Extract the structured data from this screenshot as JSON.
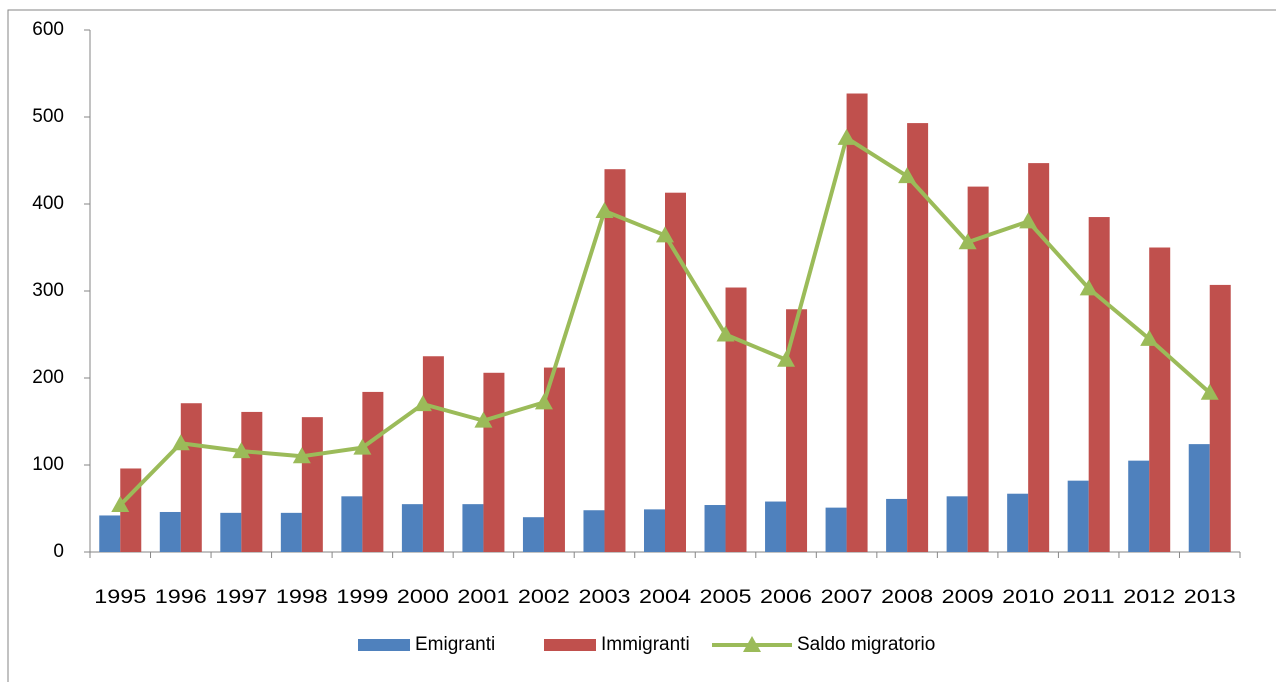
{
  "chart_data": {
    "type": "bar",
    "categories": [
      "1995",
      "1996",
      "1997",
      "1998",
      "1999",
      "2000",
      "2001",
      "2002",
      "2003",
      "2004",
      "2005",
      "2006",
      "2007",
      "2008",
      "2009",
      "2010",
      "2011",
      "2012",
      "2013"
    ],
    "series": [
      {
        "name": "Emigranti",
        "color": "#4f81bd",
        "type": "bar",
        "values": [
          42,
          46,
          45,
          45,
          64,
          55,
          55,
          40,
          48,
          49,
          54,
          58,
          51,
          61,
          64,
          67,
          82,
          105,
          124
        ]
      },
      {
        "name": "Immigranti",
        "color": "#c0504d",
        "type": "bar",
        "values": [
          96,
          171,
          161,
          155,
          184,
          225,
          206,
          212,
          440,
          413,
          304,
          279,
          527,
          493,
          420,
          447,
          385,
          350,
          307
        ]
      },
      {
        "name": "Saldo migratorio",
        "color": "#9bbb59",
        "type": "line",
        "values": [
          54,
          125,
          116,
          110,
          120,
          170,
          151,
          172,
          392,
          364,
          250,
          221,
          476,
          432,
          356,
          380,
          303,
          245,
          183
        ]
      }
    ],
    "ylim": [
      0,
      600
    ],
    "yticks": [
      0,
      100,
      200,
      300,
      400,
      500,
      600
    ],
    "grid": false,
    "legend": "bottom"
  }
}
